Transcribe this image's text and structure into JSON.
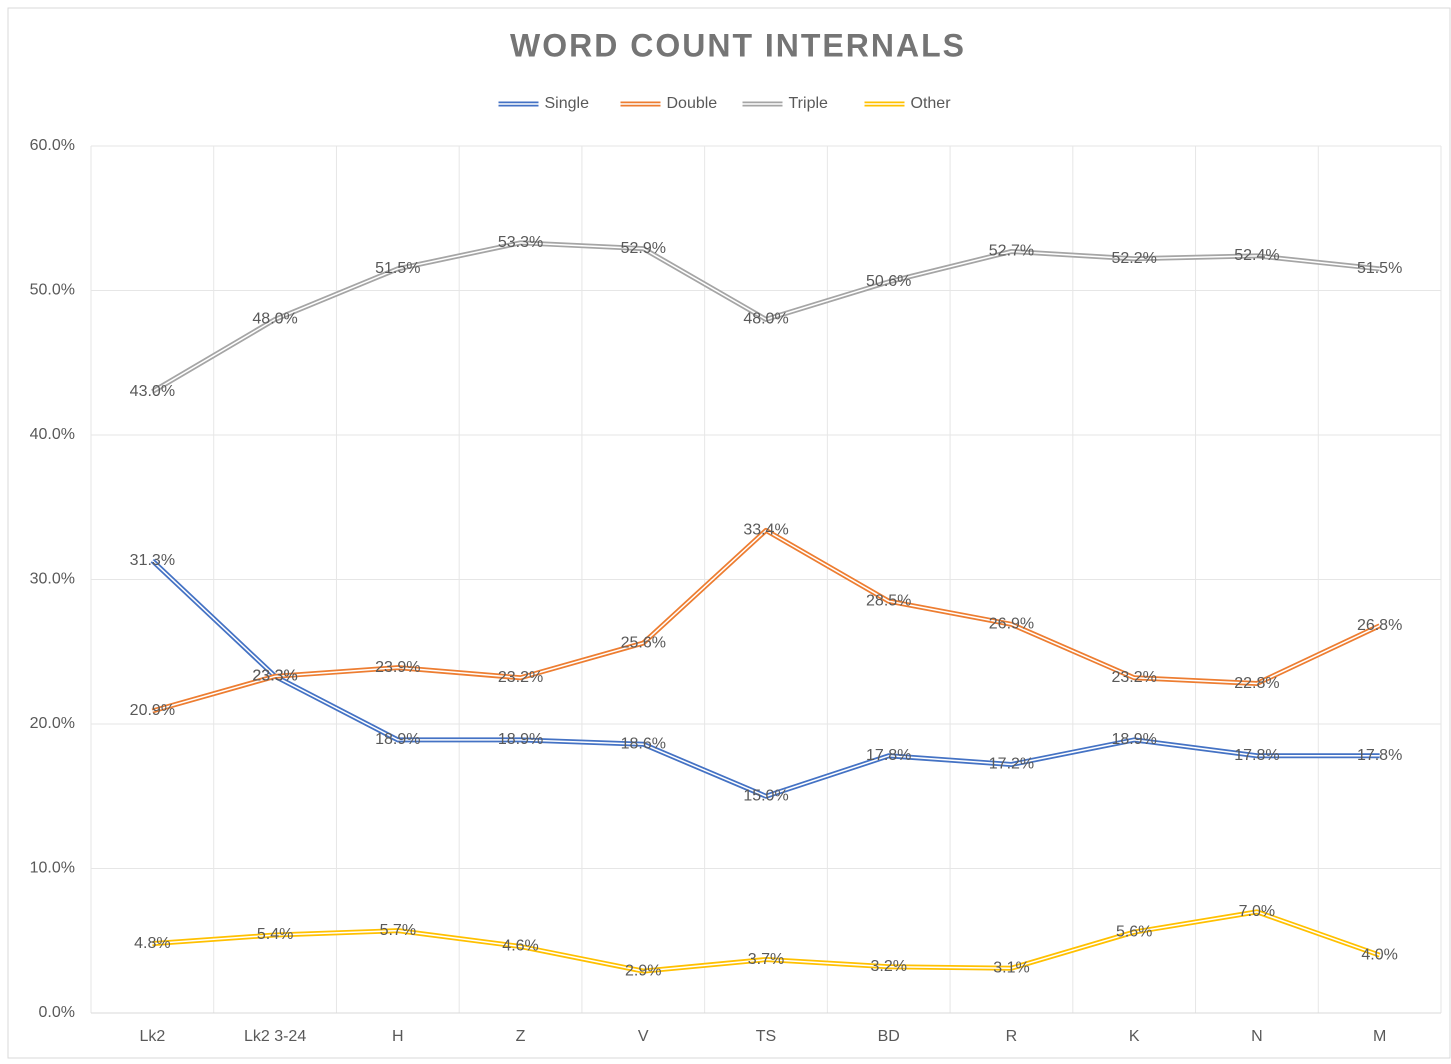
{
  "chart_data": {
    "type": "line",
    "title": "WORD COUNT INTERNALS",
    "categories": [
      "Lk2",
      "Lk2 3-24",
      "H",
      "Z",
      "V",
      "TS",
      "BD",
      "R",
      "K",
      "N",
      "M"
    ],
    "series": [
      {
        "name": "Single",
        "color": "#4472c4",
        "values": [
          31.3,
          23.3,
          18.9,
          18.9,
          18.6,
          15.0,
          17.8,
          17.2,
          18.9,
          17.8,
          17.8
        ],
        "value_labels": [
          "31.3%",
          "23.3%",
          "18.9%",
          "18.9%",
          "18.6%",
          "15.0%",
          "17.8%",
          "17.2%",
          "18.9%",
          "17.8%",
          "17.8%"
        ]
      },
      {
        "name": "Double",
        "color": "#ed7d31",
        "values": [
          20.9,
          23.3,
          23.9,
          23.2,
          25.6,
          33.4,
          28.5,
          26.9,
          23.2,
          22.8,
          26.8
        ],
        "value_labels": [
          "20.9%",
          "23.3%",
          "23.9%",
          "23.2%",
          "25.6%",
          "33.4%",
          "28.5%",
          "26.9%",
          "23.2%",
          "22.8%",
          "26.8%"
        ]
      },
      {
        "name": "Triple",
        "color": "#a5a5a5",
        "values": [
          43.0,
          48.0,
          51.5,
          53.3,
          52.9,
          48.0,
          50.6,
          52.7,
          52.2,
          52.4,
          51.5
        ],
        "value_labels": [
          "43.0%",
          "48.0%",
          "51.5%",
          "53.3%",
          "52.9%",
          "48.0%",
          "50.6%",
          "52.7%",
          "52.2%",
          "52.4%",
          "51.5%"
        ]
      },
      {
        "name": "Other",
        "color": "#ffc000",
        "values": [
          4.8,
          5.4,
          5.7,
          4.6,
          2.9,
          3.7,
          3.2,
          3.1,
          5.6,
          7.0,
          4.0
        ],
        "value_labels": [
          "4.8%",
          "5.4%",
          "5.7%",
          "4.6%",
          "2.9%",
          "3.7%",
          "3.2%",
          "3.1%",
          "5.6%",
          "7.0%",
          "4.0%"
        ]
      }
    ],
    "ylim": [
      0,
      60
    ],
    "yticks": [
      {
        "value": 0,
        "label": "0.0%"
      },
      {
        "value": 10,
        "label": "10.0%"
      },
      {
        "value": 20,
        "label": "20.0%"
      },
      {
        "value": 30,
        "label": "30.0%"
      },
      {
        "value": 40,
        "label": "40.0%"
      },
      {
        "value": 50,
        "label": "50.0%"
      },
      {
        "value": 60,
        "label": "60.0%"
      }
    ],
    "grid": true,
    "legend": "top"
  }
}
